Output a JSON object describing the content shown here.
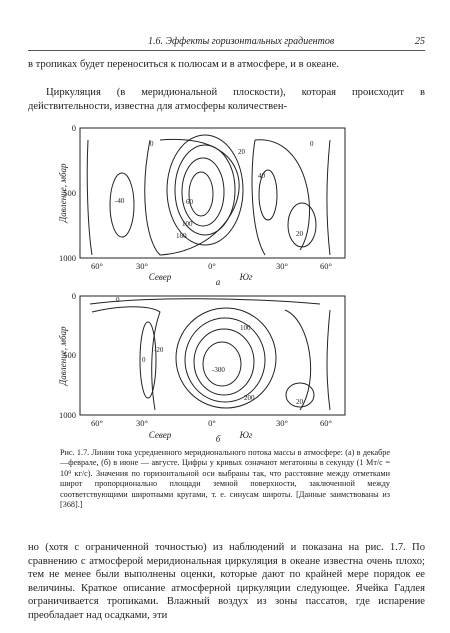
{
  "header": {
    "section": "1.6. Эффекты горизонтальных градиентов",
    "page": "25"
  },
  "paragraphs": [
    "в тропиках будет переноситься к полюсам и в атмосфере, и в океане.",
    "Циркуляция (в меридиональной плоскости), которая происходит в действительности, известна для атмосферы количествен-",
    "но (хотя с ограниченной точностью) из наблюдений и показана на рис. 1.7. По сравнению с атмосферой меридиональная циркуляция в океане известна очень плохо; тем не менее были выполнены оценки, которые дают по крайней мере порядок ее величины. Краткое описание атмосферной циркуляции следующее. Ячейка Гадлея ограничивается тропиками. Влажный воздух из зоны пассатов, где испарение преобладает над осадками, эти"
  ],
  "figure_a": {
    "y_label": "Давление, мбар",
    "y_ticks": [
      "0",
      "500",
      "1000"
    ],
    "x_ticks": [
      "60°",
      "30°",
      "0°",
      "30°",
      "60°"
    ],
    "north": "Север",
    "south": "Юг",
    "panel": "а",
    "contour_labels": [
      "0",
      "0",
      "20",
      "-40",
      "40",
      "60",
      "100",
      "160",
      "20"
    ]
  },
  "figure_b": {
    "y_label": "Давление, мбар",
    "y_ticks": [
      "0",
      "500",
      "1000"
    ],
    "x_ticks": [
      "60°",
      "30°",
      "0°",
      "30°",
      "60°"
    ],
    "north": "Север",
    "south": "Юг",
    "panel": "б",
    "contour_labels": [
      "0",
      "-20",
      "0",
      "100",
      "-300",
      "200",
      "20"
    ]
  },
  "caption": "Рис. 1.7. Линии тока усредненного меридионального потока массы в атмосфере: (а) в декабре—феврале, (б) в июне — августе. Цифры у кривых означают мегатонны в секунду (1 Мт/с = 10⁹ кг/с). Значения по горизонтальной оси выбраны так, что расстояние между отметками широт пропорционально площади земной поверхности, заключенной между соответствующими широтными кругами, т. е. синусам широты. [Данные заимствованы из [368].]"
}
